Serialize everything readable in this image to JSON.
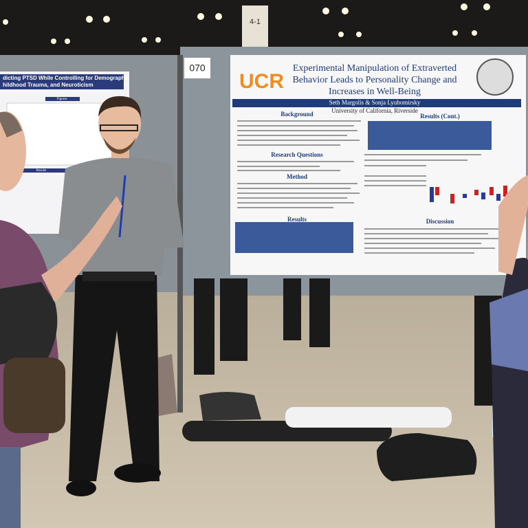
{
  "sign": "4-1",
  "board_number": "070",
  "poster": {
    "logo": "UCR",
    "title_lines": [
      "Experimental Manipulation of Extraverted",
      "Behavior Leads to Personality Change and",
      "Increases in Well-Being"
    ],
    "authors": "Seth Margolis & Sonja Lyubomirsky",
    "affiliation": "University of California, Riverside",
    "sections": [
      "Background",
      "Research Questions",
      "Method",
      "Results",
      "Results (Cont.)",
      "Discussion"
    ]
  },
  "left_poster": {
    "title_lines": [
      "dicting PTSD While Controlling for Demographic",
      "hildhood Trauma, and Neuroticism"
    ],
    "sections": [
      "Figures",
      "Results"
    ]
  }
}
